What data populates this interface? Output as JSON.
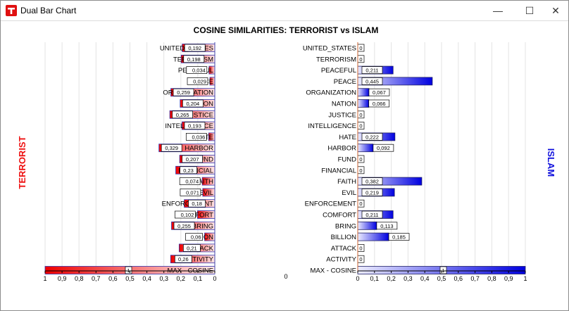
{
  "window": {
    "title": "Dual Bar Chart",
    "minimize": "—",
    "maximize": "☐",
    "close": "✕",
    "app_icon": "app-T-icon"
  },
  "chart_data": {
    "type": "bar",
    "title": "COSINE SIMILARITIES: TERRORIST vs ISLAM",
    "left_label": "TERRORIST",
    "right_label": "ISLAM",
    "center_value": "0",
    "left_color": "#ff0000",
    "right_color": "#0000ee",
    "axis_range": [
      0,
      1
    ],
    "left_ticks": [
      "1",
      "0,9",
      "0,8",
      "0,7",
      "0,6",
      "0,5",
      "0,4",
      "0,3",
      "0,2",
      "0,1",
      "0"
    ],
    "right_ticks": [
      "0",
      "0,1",
      "0,2",
      "0,3",
      "0,4",
      "0,5",
      "0,6",
      "0,7",
      "0,8",
      "0,9",
      "1"
    ],
    "rows": [
      {
        "left_label": "UNITED_STATES",
        "left_value": 0.192,
        "left_text": "0,192",
        "right_label": "UNITED_STATES",
        "right_value": 0,
        "right_text": "0"
      },
      {
        "left_label": "TERRORISM",
        "left_value": 0.198,
        "left_text": "0,198",
        "right_label": "TERRORISM",
        "right_value": 0,
        "right_text": "0"
      },
      {
        "left_label": "PEACEFUL",
        "left_value": 0.034,
        "left_text": "0,034",
        "right_label": "PEACEFUL",
        "right_value": 0.211,
        "right_text": "0,211"
      },
      {
        "left_label": "PEACE",
        "left_value": 0.029,
        "left_text": "0,029",
        "right_label": "PEACE",
        "right_value": 0.445,
        "right_text": "0,445"
      },
      {
        "left_label": "ORGANIZATION",
        "left_value": 0.259,
        "left_text": "0,259",
        "right_label": "ORGANIZATION",
        "right_value": 0.067,
        "right_text": "0,067"
      },
      {
        "left_label": "NATION",
        "left_value": 0.204,
        "left_text": "0,204",
        "right_label": "NATION",
        "right_value": 0.066,
        "right_text": "0,066"
      },
      {
        "left_label": "JUSTICE",
        "left_value": 0.265,
        "left_text": "0,265",
        "right_label": "JUSTICE",
        "right_value": 0,
        "right_text": "0"
      },
      {
        "left_label": "INTELLIGENCE",
        "left_value": 0.193,
        "left_text": "0,193",
        "right_label": "INTELLIGENCE",
        "right_value": 0,
        "right_text": "0"
      },
      {
        "left_label": "HATE",
        "left_value": 0.036,
        "left_text": "0,036",
        "right_label": "HATE",
        "right_value": 0.222,
        "right_text": "0,222"
      },
      {
        "left_label": "HARBOR",
        "left_value": 0.329,
        "left_text": "0,329",
        "right_label": "HARBOR",
        "right_value": 0.092,
        "right_text": "0,092"
      },
      {
        "left_label": "FUND",
        "left_value": 0.207,
        "left_text": "0,207",
        "right_label": "FUND",
        "right_value": 0,
        "right_text": "0"
      },
      {
        "left_label": "FINANCIAL",
        "left_value": 0.23,
        "left_text": "0,23",
        "right_label": "FINANCIAL",
        "right_value": 0,
        "right_text": "0"
      },
      {
        "left_label": "FAITH",
        "left_value": 0.074,
        "left_text": "0,074",
        "right_label": "FAITH",
        "right_value": 0.382,
        "right_text": "0,382"
      },
      {
        "left_label": "EVIL",
        "left_value": 0.071,
        "left_text": "0,071",
        "right_label": "EVIL",
        "right_value": 0.219,
        "right_text": "0,219"
      },
      {
        "left_label": "ENFORCEMENT",
        "left_value": 0.18,
        "left_text": "0,18",
        "right_label": "ENFORCEMENT",
        "right_value": 0,
        "right_text": "0"
      },
      {
        "left_label": "COMFORT",
        "left_value": 0.102,
        "left_text": "0,102",
        "right_label": "COMFORT",
        "right_value": 0.211,
        "right_text": "0,211"
      },
      {
        "left_label": "BRING",
        "left_value": 0.255,
        "left_text": "0,255",
        "right_label": "BRING",
        "right_value": 0.113,
        "right_text": "0,113"
      },
      {
        "left_label": "BILLION",
        "left_value": 0.06,
        "left_text": "0,06",
        "right_label": "BILLION",
        "right_value": 0.185,
        "right_text": "0,185"
      },
      {
        "left_label": "ATTACK",
        "left_value": 0.21,
        "left_text": "0,21",
        "right_label": "ATTACK",
        "right_value": 0,
        "right_text": "0"
      },
      {
        "left_label": "ACTIVITY",
        "left_value": 0.26,
        "left_text": "0,26",
        "right_label": "ACTIVITY",
        "right_value": 0,
        "right_text": "0"
      },
      {
        "left_label": "MAX - COSINE",
        "left_value": 1,
        "left_text": "1",
        "right_label": "MAX - COSINE",
        "right_value": 1,
        "right_text": "1"
      }
    ]
  }
}
